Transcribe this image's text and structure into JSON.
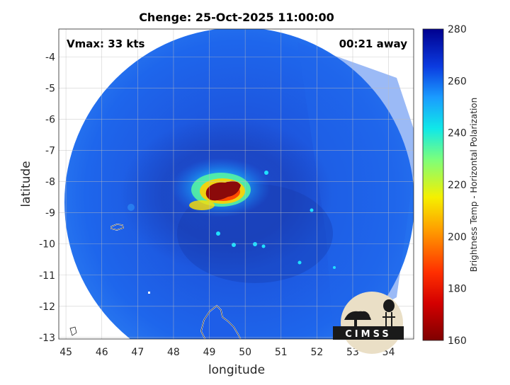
{
  "title": "Chenge: 25-Oct-2025 11:00:00",
  "vmax_label": "Vmax: 33 kts",
  "away_label": "00:21 away",
  "xlabel": "longitude",
  "ylabel": "latitude",
  "colorbar_label": "Brightness Temp - Horizontal Polarization",
  "logo_text": "CIMSS",
  "x_ticks": [
    "45",
    "46",
    "47",
    "48",
    "49",
    "50",
    "51",
    "52",
    "53",
    "54"
  ],
  "y_ticks": [
    "-4",
    "-5",
    "-6",
    "-7",
    "-8",
    "-9",
    "-10",
    "-11",
    "-12",
    "-13"
  ],
  "colorbar_ticks": [
    "280",
    "260",
    "240",
    "220",
    "200",
    "180",
    "160"
  ],
  "map": {
    "lon_range": [
      44.8,
      54.7
    ],
    "lat_range": [
      -13.05,
      -3.1
    ],
    "colorbar_range": [
      160,
      280
    ],
    "colormap": "jet",
    "grid": true,
    "storm_center": {
      "lon": 49.4,
      "lat": -8.3
    },
    "swath_center": {
      "lon": 49.8,
      "lat": -8.6
    }
  },
  "colors": {
    "background_field": "#1e5ee8",
    "cold_core": "#8b0a0a",
    "land_outline": "#ffffff"
  }
}
